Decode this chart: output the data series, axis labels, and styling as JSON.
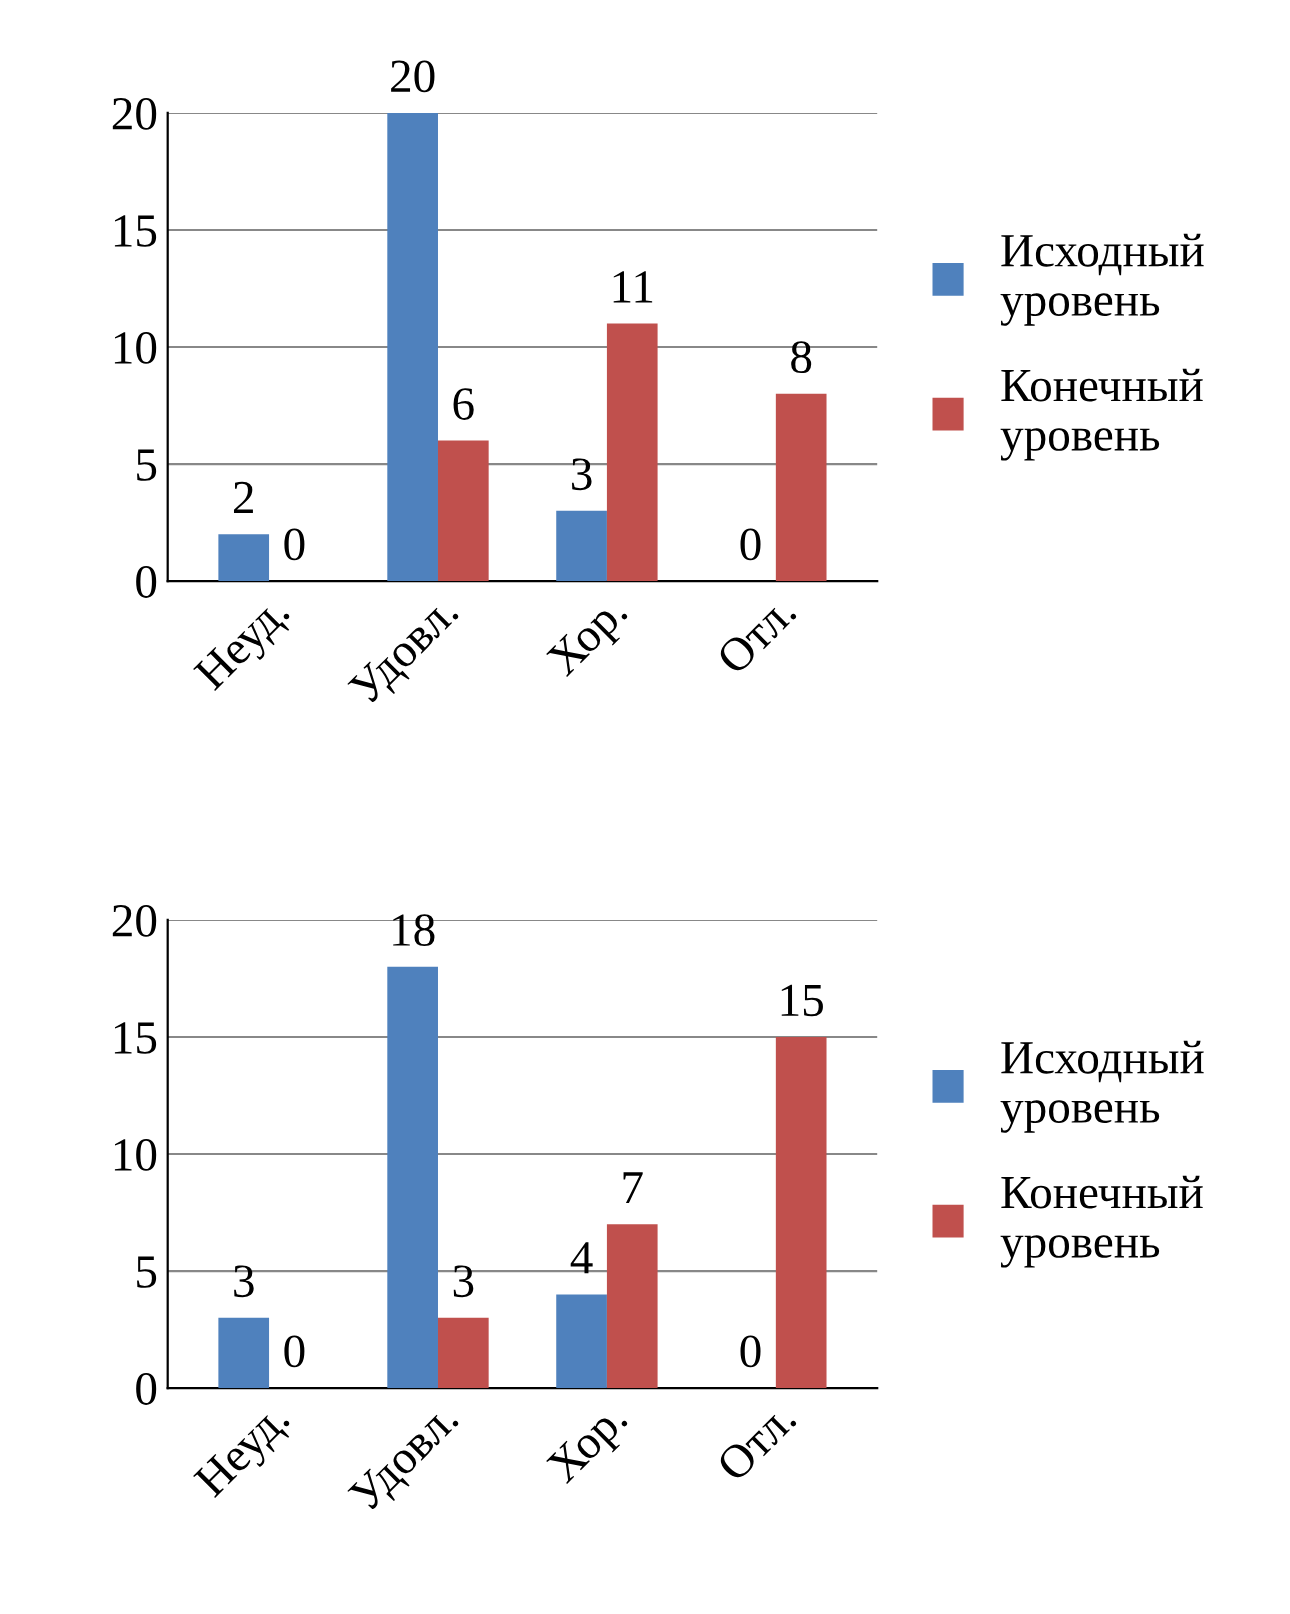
{
  "chart_data": [
    {
      "type": "bar",
      "categories": [
        "Неуд.",
        "Удовл.",
        "Хор.",
        "Отл."
      ],
      "series": [
        {
          "name": "Исходный уровень",
          "color": "#4f81bd",
          "values": [
            2,
            20,
            3,
            0
          ]
        },
        {
          "name": "Конечный уровень",
          "color": "#c0504d",
          "values": [
            0,
            6,
            11,
            8
          ]
        }
      ],
      "ylim": [
        0,
        20
      ],
      "yticks": [
        0,
        5,
        10,
        15,
        20
      ],
      "grid": "y",
      "legend": "right",
      "data_labels": true
    },
    {
      "type": "bar",
      "categories": [
        "Неуд.",
        "Удовл.",
        "Хор.",
        "Отл."
      ],
      "series": [
        {
          "name": "Исходный уровень",
          "color": "#4f81bd",
          "values": [
            3,
            18,
            4,
            0
          ]
        },
        {
          "name": "Конечный уровень",
          "color": "#c0504d",
          "values": [
            0,
            3,
            7,
            15
          ]
        }
      ],
      "ylim": [
        0,
        20
      ],
      "yticks": [
        0,
        5,
        10,
        15,
        20
      ],
      "grid": "y",
      "legend": "right",
      "data_labels": true
    }
  ]
}
